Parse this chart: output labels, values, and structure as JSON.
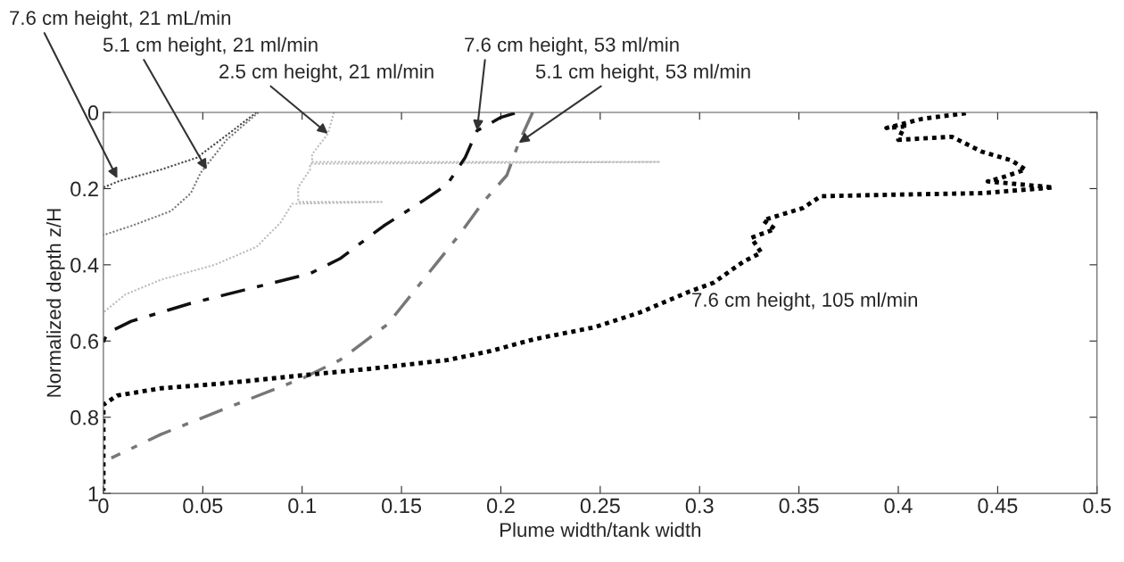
{
  "chart_data": {
    "type": "line",
    "xlabel": "Plume width/tank width",
    "ylabel": "Normalized depth z/H",
    "xlim": [
      0,
      0.5
    ],
    "xticks": [
      0,
      0.05,
      0.1,
      0.15,
      0.2,
      0.25,
      0.3,
      0.35,
      0.4,
      0.45,
      0.5
    ],
    "ylim": [
      1,
      0
    ],
    "yticks": [
      0,
      0.2,
      0.4,
      0.6,
      0.8,
      1
    ],
    "grid": false,
    "legend": false,
    "marker": "none",
    "series": [
      {
        "color": "#444444",
        "line_style": "dotted",
        "x": [
          0.077,
          0.065,
          0.047,
          0.029,
          0.008,
          0
        ],
        "values": [
          0,
          0.048,
          0.119,
          0.15,
          0.18,
          0.197
        ]
      },
      {
        "color": "#777777",
        "line_style": "dotted",
        "x": [
          0.078,
          0.062,
          0.049,
          0.044,
          0.034,
          0.014,
          0
        ],
        "values": [
          0,
          0.072,
          0.158,
          0.212,
          0.259,
          0.298,
          0.322
        ]
      },
      {
        "color": "#bbbbbb",
        "line_style": "dotted",
        "x": [
          0.116,
          0.113,
          0.105,
          0.105,
          0.28,
          0.104,
          0.104,
          0.098,
          0.098,
          0.14,
          0.095,
          0.089,
          0.077,
          0.056,
          0.029,
          0.011,
          0
        ],
        "values": [
          0,
          0.056,
          0.11,
          0.13,
          0.13,
          0.135,
          0.15,
          0.197,
          0.235,
          0.235,
          0.24,
          0.29,
          0.353,
          0.4,
          0.439,
          0.478,
          0.525
        ]
      },
      {
        "color": "#111111",
        "line_style": "dashdot",
        "x": [
          0.207,
          0.2,
          0.188,
          0.182,
          0.173,
          0.162,
          0.141,
          0.119,
          0.104,
          0.074,
          0.044,
          0.014,
          0.002,
          0
        ],
        "values": [
          0.002,
          0.013,
          0.048,
          0.119,
          0.189,
          0.228,
          0.298,
          0.384,
          0.423,
          0.462,
          0.501,
          0.548,
          0.579,
          0.603
        ]
      },
      {
        "color": "#777777",
        "line_style": "dashdot",
        "x": [
          0.216,
          0.209,
          0.203,
          0.191,
          0.179,
          0.167,
          0.155,
          0.143,
          0.119,
          0.101,
          0.059,
          0.029,
          0.004
        ],
        "values": [
          0,
          0.08,
          0.165,
          0.236,
          0.322,
          0.4,
          0.478,
          0.556,
          0.65,
          0.696,
          0.782,
          0.845,
          0.907
        ]
      },
      {
        "color": "#000000",
        "line_style": "dotted",
        "x": [
          0.434,
          0.412,
          0.394,
          0.403,
          0.4,
          0.427,
          0.442,
          0.457,
          0.464,
          0.451,
          0.445,
          0.478,
          0.442,
          0.397,
          0.361,
          0.352,
          0.337,
          0.332,
          0.338,
          0.326,
          0.331,
          0.322,
          0.307,
          0.295,
          0.27,
          0.247,
          0.217,
          0.195,
          0.173,
          0.134,
          0.104,
          0.059,
          0.029,
          0.007,
          0,
          0
        ],
        "values": [
          0.002,
          0.017,
          0.041,
          0.037,
          0.072,
          0.064,
          0.103,
          0.126,
          0.15,
          0.173,
          0.181,
          0.197,
          0.212,
          0.216,
          0.22,
          0.251,
          0.275,
          0.283,
          0.306,
          0.329,
          0.368,
          0.392,
          0.447,
          0.47,
          0.525,
          0.564,
          0.595,
          0.626,
          0.65,
          0.673,
          0.688,
          0.712,
          0.724,
          0.743,
          0.767,
          0.993
        ]
      }
    ],
    "annotations": [
      {
        "text": "7.6 cm height, 21 mL/min",
        "x": 0.007,
        "y": 0.173
      },
      {
        "text": "5.1 cm height, 21 ml/min",
        "x": 0.052,
        "y": 0.15
      },
      {
        "text": "2.5 cm height, 21 ml/min",
        "x": 0.113,
        "y": 0.056
      },
      {
        "text": "7.6 cm height, 53 ml/min",
        "x": 0.188,
        "y": 0.048
      },
      {
        "text": "5.1 cm height, 53 ml/min",
        "x": 0.209,
        "y": 0.08
      },
      "7.6 cm height, 105 ml/min"
    ]
  }
}
